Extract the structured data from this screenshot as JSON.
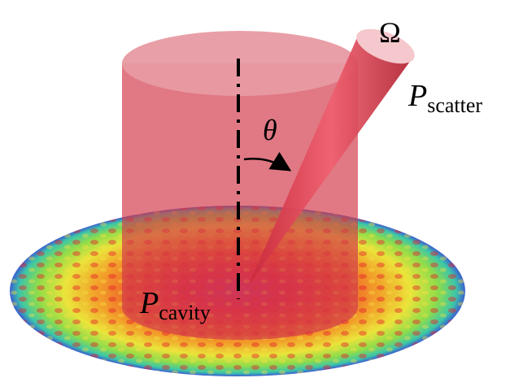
{
  "labels": {
    "solid_angle": "Ω",
    "angle": "θ",
    "scatter_power": {
      "symbol": "P",
      "subscript": "scatter"
    },
    "cavity_power": {
      "symbol": "P",
      "subscript": "cavity"
    }
  }
}
